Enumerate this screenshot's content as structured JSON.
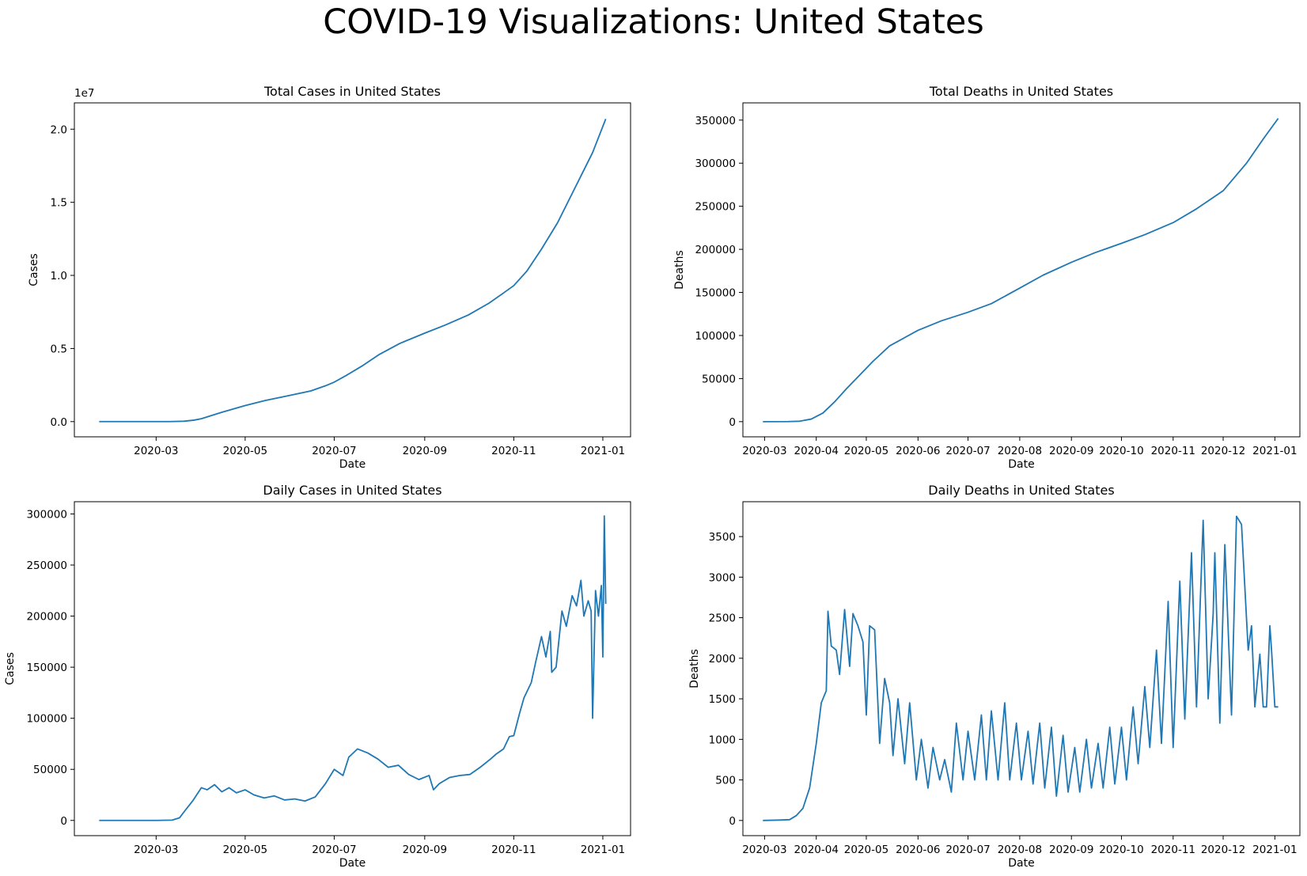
{
  "suptitle": "COVID-19 Visualizations: United States",
  "style": {
    "line_color": "#1f77b4",
    "axis_color": "#000000",
    "background": "#ffffff"
  },
  "chart_data": [
    {
      "id": "total-cases",
      "type": "line",
      "title": "Total Cases in United States",
      "xlabel": "Date",
      "ylabel": "Cases",
      "offset_text": "1e7",
      "grid": false,
      "x_start": "2020-01-22",
      "x_end": "2021-01-03",
      "xlim": [
        "2020-01-05",
        "2021-01-20"
      ],
      "ylim": [
        -1040000,
        21800000
      ],
      "xticks": [
        "2020-03",
        "2020-05",
        "2020-07",
        "2020-09",
        "2020-11",
        "2021-01"
      ],
      "yticks": [
        0,
        5000000,
        10000000,
        15000000,
        20000000
      ],
      "ytick_labels": [
        "0.0",
        "0.5",
        "1.0",
        "1.5",
        "2.0"
      ],
      "x": [
        "2020-01-22",
        "2020-02-15",
        "2020-03-01",
        "2020-03-10",
        "2020-03-20",
        "2020-03-27",
        "2020-04-01",
        "2020-04-15",
        "2020-05-01",
        "2020-05-15",
        "2020-06-01",
        "2020-06-15",
        "2020-06-25",
        "2020-07-01",
        "2020-07-10",
        "2020-07-20",
        "2020-08-01",
        "2020-08-15",
        "2020-09-01",
        "2020-09-15",
        "2020-10-01",
        "2020-10-15",
        "2020-10-25",
        "2020-11-01",
        "2020-11-10",
        "2020-11-20",
        "2020-12-01",
        "2020-12-10",
        "2020-12-20",
        "2020-12-25",
        "2021-01-03"
      ],
      "values": [
        0,
        20,
        60,
        1000,
        25000,
        100000,
        200000,
        640000,
        1100000,
        1450000,
        1800000,
        2100000,
        2450000,
        2700000,
        3200000,
        3800000,
        4600000,
        5350000,
        6050000,
        6600000,
        7300000,
        8100000,
        8800000,
        9300000,
        10300000,
        11800000,
        13600000,
        15400000,
        17400000,
        18400000,
        20700000
      ]
    },
    {
      "id": "total-deaths",
      "type": "line",
      "title": "Total Deaths in United States",
      "xlabel": "Date",
      "ylabel": "Deaths",
      "grid": false,
      "x_start": "2020-02-29",
      "x_end": "2021-01-03",
      "xlim": [
        "2020-02-17",
        "2021-01-16"
      ],
      "ylim": [
        -17600,
        370000
      ],
      "xticks": [
        "2020-03",
        "2020-04",
        "2020-05",
        "2020-06",
        "2020-07",
        "2020-08",
        "2020-09",
        "2020-10",
        "2020-11",
        "2020-12",
        "2021-01"
      ],
      "yticks": [
        0,
        50000,
        100000,
        150000,
        200000,
        250000,
        300000,
        350000
      ],
      "x": [
        "2020-02-29",
        "2020-03-15",
        "2020-03-22",
        "2020-03-29",
        "2020-04-05",
        "2020-04-12",
        "2020-04-19",
        "2020-04-26",
        "2020-05-05",
        "2020-05-15",
        "2020-06-01",
        "2020-06-15",
        "2020-07-01",
        "2020-07-15",
        "2020-08-01",
        "2020-08-15",
        "2020-09-01",
        "2020-09-15",
        "2020-10-01",
        "2020-10-15",
        "2020-11-01",
        "2020-11-15",
        "2020-12-01",
        "2020-12-15",
        "2020-12-25",
        "2021-01-03"
      ],
      "values": [
        0,
        50,
        500,
        3000,
        10000,
        23000,
        38000,
        52000,
        70000,
        88000,
        106000,
        117000,
        127000,
        137000,
        155000,
        170000,
        185000,
        196000,
        207000,
        217000,
        231000,
        247000,
        268000,
        300000,
        328000,
        352000
      ]
    },
    {
      "id": "daily-cases",
      "type": "line",
      "title": "Daily Cases in United States",
      "xlabel": "Date",
      "ylabel": "Cases",
      "grid": false,
      "x_start": "2020-01-22",
      "x_end": "2021-01-03",
      "xlim": [
        "2020-01-05",
        "2021-01-20"
      ],
      "ylim": [
        -14900,
        312000
      ],
      "xticks": [
        "2020-03",
        "2020-05",
        "2020-07",
        "2020-09",
        "2020-11",
        "2021-01"
      ],
      "yticks": [
        0,
        50000,
        100000,
        150000,
        200000,
        250000,
        300000
      ],
      "x": [
        "2020-01-22",
        "2020-03-01",
        "2020-03-12",
        "2020-03-17",
        "2020-03-21",
        "2020-03-26",
        "2020-04-01",
        "2020-04-05",
        "2020-04-10",
        "2020-04-15",
        "2020-04-20",
        "2020-04-25",
        "2020-05-01",
        "2020-05-07",
        "2020-05-14",
        "2020-05-21",
        "2020-05-28",
        "2020-06-04",
        "2020-06-11",
        "2020-06-18",
        "2020-06-25",
        "2020-07-01",
        "2020-07-07",
        "2020-07-11",
        "2020-07-17",
        "2020-07-24",
        "2020-07-31",
        "2020-08-07",
        "2020-08-14",
        "2020-08-21",
        "2020-08-28",
        "2020-09-04",
        "2020-09-07",
        "2020-09-11",
        "2020-09-18",
        "2020-09-25",
        "2020-10-02",
        "2020-10-09",
        "2020-10-16",
        "2020-10-20",
        "2020-10-25",
        "2020-10-29",
        "2020-11-01",
        "2020-11-05",
        "2020-11-08",
        "2020-11-13",
        "2020-11-16",
        "2020-11-20",
        "2020-11-23",
        "2020-11-26",
        "2020-11-27",
        "2020-11-30",
        "2020-12-04",
        "2020-12-07",
        "2020-12-11",
        "2020-12-14",
        "2020-12-17",
        "2020-12-19",
        "2020-12-22",
        "2020-12-24",
        "2020-12-25",
        "2020-12-27",
        "2020-12-29",
        "2020-12-31",
        "2021-01-01",
        "2021-01-02",
        "2021-01-03"
      ],
      "values": [
        0,
        0,
        300,
        2500,
        10000,
        19000,
        32000,
        30000,
        35000,
        28000,
        32000,
        27000,
        30000,
        25000,
        22000,
        24000,
        20000,
        21000,
        19000,
        23000,
        36000,
        50000,
        44000,
        62000,
        70000,
        66000,
        60000,
        52000,
        54000,
        45000,
        40000,
        44000,
        30000,
        36000,
        42000,
        44000,
        45000,
        52000,
        60000,
        65000,
        70000,
        82000,
        83000,
        105000,
        120000,
        135000,
        155000,
        180000,
        160000,
        185000,
        145000,
        150000,
        205000,
        190000,
        220000,
        210000,
        235000,
        200000,
        215000,
        205000,
        100000,
        225000,
        200000,
        230000,
        160000,
        298000,
        212000
      ]
    },
    {
      "id": "daily-deaths",
      "type": "line",
      "title": "Daily Deaths in United States",
      "xlabel": "Date",
      "ylabel": "Deaths",
      "grid": false,
      "x_start": "2020-02-29",
      "x_end": "2021-01-03",
      "xlim": [
        "2020-02-17",
        "2021-01-16"
      ],
      "ylim": [
        -187,
        3930
      ],
      "xticks": [
        "2020-03",
        "2020-04",
        "2020-05",
        "2020-06",
        "2020-07",
        "2020-08",
        "2020-09",
        "2020-10",
        "2020-11",
        "2020-12",
        "2021-01"
      ],
      "yticks": [
        0,
        500,
        1000,
        1500,
        2000,
        2500,
        3000,
        3500
      ],
      "x": [
        "2020-02-29",
        "2020-03-10",
        "2020-03-16",
        "2020-03-20",
        "2020-03-24",
        "2020-03-28",
        "2020-04-01",
        "2020-04-04",
        "2020-04-07",
        "2020-04-08",
        "2020-04-10",
        "2020-04-13",
        "2020-04-15",
        "2020-04-18",
        "2020-04-21",
        "2020-04-23",
        "2020-04-26",
        "2020-04-29",
        "2020-05-01",
        "2020-05-03",
        "2020-05-06",
        "2020-05-09",
        "2020-05-12",
        "2020-05-15",
        "2020-05-17",
        "2020-05-20",
        "2020-05-24",
        "2020-05-27",
        "2020-05-31",
        "2020-06-03",
        "2020-06-07",
        "2020-06-10",
        "2020-06-14",
        "2020-06-17",
        "2020-06-21",
        "2020-06-24",
        "2020-06-28",
        "2020-07-01",
        "2020-07-05",
        "2020-07-09",
        "2020-07-12",
        "2020-07-15",
        "2020-07-19",
        "2020-07-23",
        "2020-07-26",
        "2020-07-30",
        "2020-08-02",
        "2020-08-06",
        "2020-08-09",
        "2020-08-13",
        "2020-08-16",
        "2020-08-20",
        "2020-08-23",
        "2020-08-27",
        "2020-08-30",
        "2020-09-03",
        "2020-09-06",
        "2020-09-10",
        "2020-09-13",
        "2020-09-17",
        "2020-09-20",
        "2020-09-24",
        "2020-09-27",
        "2020-10-01",
        "2020-10-04",
        "2020-10-08",
        "2020-10-11",
        "2020-10-15",
        "2020-10-18",
        "2020-10-22",
        "2020-10-25",
        "2020-10-29",
        "2020-11-01",
        "2020-11-05",
        "2020-11-08",
        "2020-11-12",
        "2020-11-15",
        "2020-11-19",
        "2020-11-22",
        "2020-11-25",
        "2020-11-26",
        "2020-11-29",
        "2020-12-02",
        "2020-12-06",
        "2020-12-09",
        "2020-12-12",
        "2020-12-16",
        "2020-12-18",
        "2020-12-20",
        "2020-12-23",
        "2020-12-25",
        "2020-12-27",
        "2020-12-29",
        "2020-12-30",
        "2021-01-01",
        "2021-01-02",
        "2021-01-03"
      ],
      "values": [
        0,
        5,
        10,
        60,
        150,
        400,
        950,
        1450,
        1600,
        2580,
        2150,
        2100,
        1800,
        2600,
        1900,
        2550,
        2400,
        2200,
        1300,
        2400,
        2350,
        950,
        1750,
        1450,
        800,
        1500,
        700,
        1450,
        500,
        1000,
        400,
        900,
        500,
        750,
        350,
        1200,
        500,
        1100,
        500,
        1300,
        500,
        1350,
        500,
        1450,
        500,
        1200,
        500,
        1100,
        450,
        1200,
        400,
        1150,
        300,
        1050,
        350,
        900,
        350,
        1000,
        400,
        950,
        400,
        1150,
        450,
        1150,
        500,
        1400,
        700,
        1650,
        900,
        2100,
        950,
        2700,
        900,
        2950,
        1250,
        3300,
        1400,
        3700,
        1500,
        2550,
        3300,
        1200,
        3400,
        1300,
        3750,
        3650,
        2100,
        2400,
        1400,
        2050,
        1400,
        1400,
        2400,
        2100,
        1400,
        1400,
        1400
      ]
    }
  ]
}
